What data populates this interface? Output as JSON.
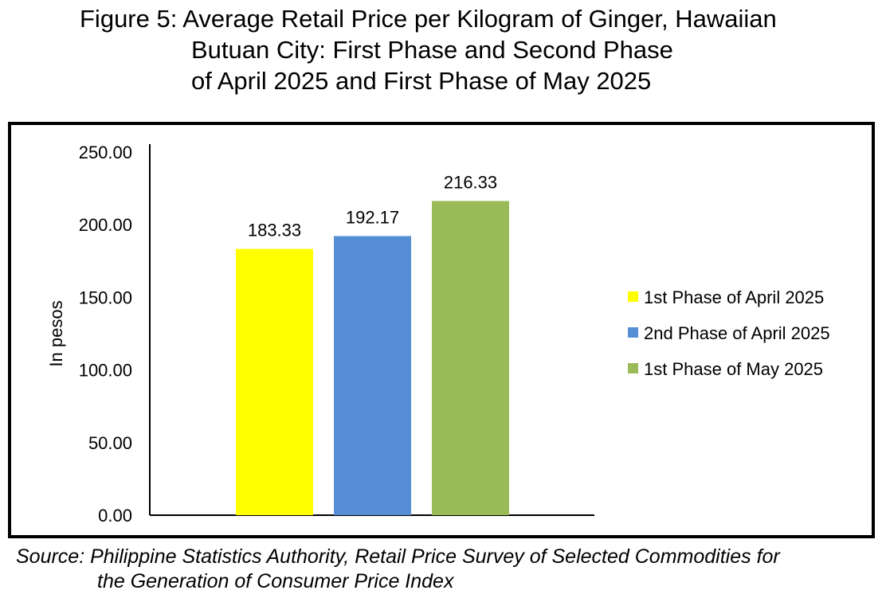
{
  "title_lines": [
    "Figure 5: Average Retail Price per Kilogram of Ginger, Hawaiian",
    "Butuan City: First Phase and Second Phase",
    "of April 2025 and First Phase of May 2025"
  ],
  "source_lines": [
    "Source: Philippine Statistics Authority, Retail Price Survey of Selected Commodities for",
    "the Generation of Consumer Price Index"
  ],
  "chart_data": {
    "type": "bar",
    "ylabel": "In pesos",
    "xlabel": "",
    "ylim": [
      0,
      250
    ],
    "yticks": [
      "0.00",
      "50.00",
      "100.00",
      "150.00",
      "200.00",
      "250.00"
    ],
    "legend_position": "right",
    "series": [
      {
        "name": "1st Phase of April 2025",
        "value": 183.33,
        "label": "183.33",
        "color": "#FFFF00"
      },
      {
        "name": "2nd Phase of April 2025",
        "value": 192.17,
        "label": "192.17",
        "color": "#558ED5"
      },
      {
        "name": "1st Phase of May 2025",
        "value": 216.33,
        "label": "216.33",
        "color": "#9BBB59"
      }
    ]
  }
}
